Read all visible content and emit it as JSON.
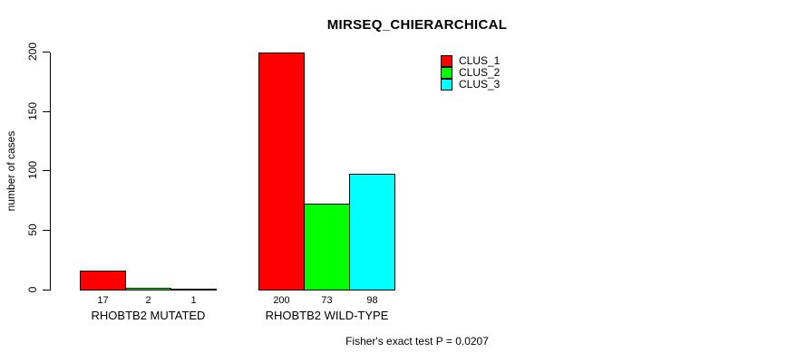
{
  "chart_data": {
    "type": "bar",
    "title": "MIRSEQ_CHIERARCHICAL",
    "ylabel": "number of cases",
    "xlabel": "",
    "ylim": [
      0,
      200
    ],
    "yticks": [
      0,
      50,
      100,
      150,
      200
    ],
    "grid": false,
    "legend_position": "top-right-inside",
    "background": "#ffffff",
    "bar_border_color": "#000000",
    "series": [
      {
        "name": "CLUS_1",
        "color": "#ff0000"
      },
      {
        "name": "CLUS_2",
        "color": "#00ff00"
      },
      {
        "name": "CLUS_3",
        "color": "#00ffff"
      }
    ],
    "categories": [
      "RHOBTB2 MUTATED",
      "RHOBTB2 WILD-TYPE"
    ],
    "groups": [
      {
        "label": "RHOBTB2 MUTATED",
        "values": [
          17,
          2,
          1
        ]
      },
      {
        "label": "RHOBTB2 WILD-TYPE",
        "values": [
          200,
          73,
          98
        ]
      }
    ],
    "annotation": "Fisher's exact test P = 0.0207"
  }
}
